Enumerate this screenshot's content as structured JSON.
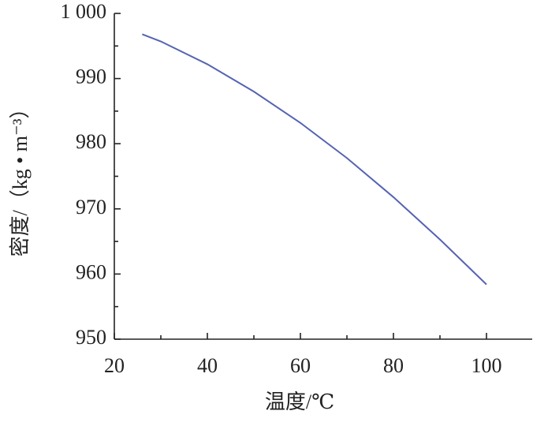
{
  "chart_data": {
    "type": "line",
    "x_label": "温度/℃",
    "y_label": "密度/（kg • m⁻³）",
    "x": [
      26,
      30,
      40,
      50,
      60,
      70,
      80,
      90,
      100
    ],
    "series": [
      {
        "color": "#5563b3",
        "values": [
          996.8,
          995.7,
          992.2,
          988.0,
          983.2,
          977.8,
          971.8,
          965.3,
          958.4
        ]
      }
    ],
    "xlim": [
      20,
      110
    ],
    "xticks": [
      20,
      40,
      60,
      80,
      100
    ],
    "x_minor_ticks": [
      30,
      50,
      70,
      90
    ],
    "ylim": [
      950,
      1000
    ],
    "yticks": [
      950,
      960,
      970,
      980,
      990,
      {
        "value": 1000,
        "label": "1 000"
      }
    ],
    "y_minor_ticks": [
      955,
      965,
      975,
      985,
      995
    ]
  }
}
